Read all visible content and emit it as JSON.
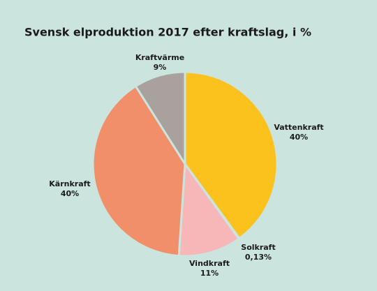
{
  "chart_data": {
    "type": "pie",
    "title": "Svensk elproduktion 2017 efter kraftslag, i %",
    "categories": [
      "Vattenkraft",
      "Solkraft",
      "Vindkraft",
      "Kärnkraft",
      "Kraftvärme"
    ],
    "values": [
      40,
      0.13,
      11,
      40,
      9
    ],
    "value_labels": [
      "40%",
      "0,13%",
      "11%",
      "40%",
      "9%"
    ],
    "colors": [
      "#fbc21e",
      "#e9c98a",
      "#f7b7b9",
      "#f28f6b",
      "#a8a19d"
    ]
  }
}
